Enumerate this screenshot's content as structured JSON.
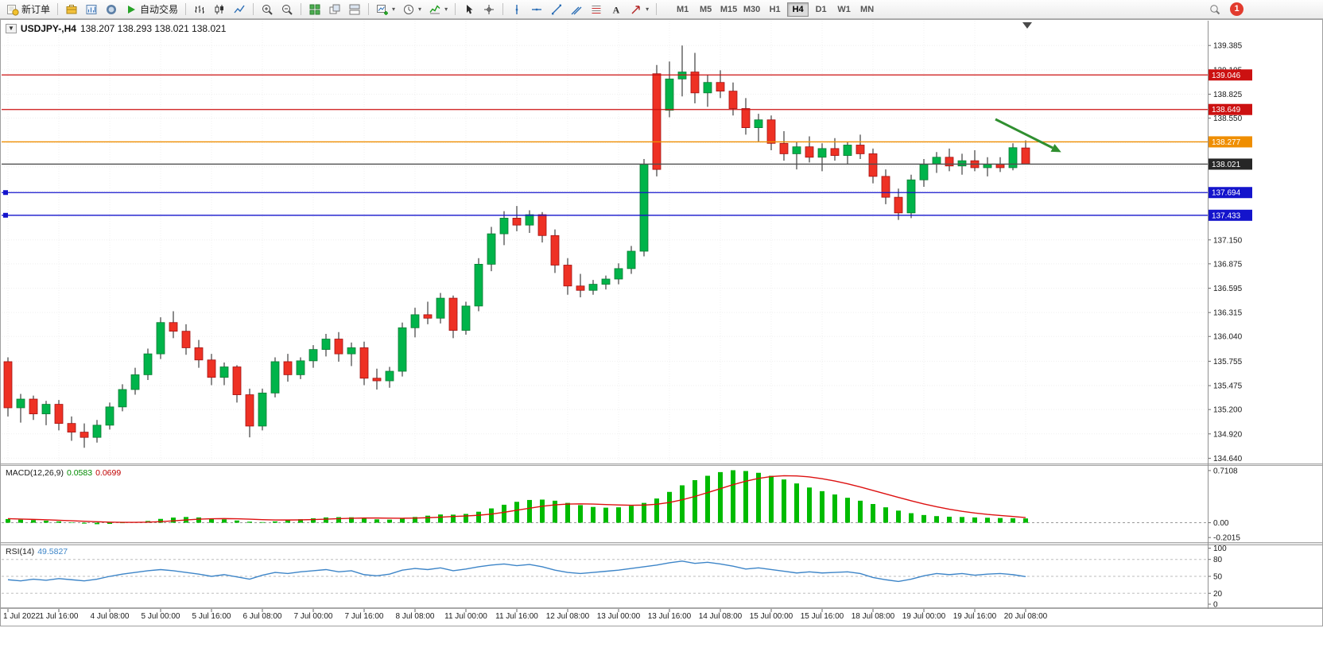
{
  "toolbar": {
    "new_order_label": "新订单",
    "auto_trading_label": "自动交易",
    "timeframes": [
      "M1",
      "M5",
      "M15",
      "M30",
      "H1",
      "H4",
      "D1",
      "W1",
      "MN"
    ],
    "active_timeframe": "H4",
    "notification_count": "1",
    "icons": [
      "new-order-icon",
      "market-watch-icon",
      "data-window-icon",
      "mql5-icon",
      "autotrade-play-icon",
      "bar-chart-icon",
      "candlestick-chart-icon",
      "line-chart-icon",
      "zoom-in-icon",
      "zoom-out-icon",
      "tile-windows-icon",
      "cascade-windows-icon",
      "arrange-windows-icon",
      "new-chart-icon",
      "periods-icon",
      "indicators-icon",
      "cursor-icon",
      "crosshair-icon",
      "vertical-line-icon",
      "horizontal-line-icon",
      "trendline-icon",
      "channel-icon",
      "fibonacci-icon",
      "text-icon",
      "arrows-icon",
      "search-icon"
    ]
  },
  "chart_title": {
    "symbol": "USDJPY-,H4",
    "ohlc": "138.207 138.293 138.021 138.021"
  },
  "chart_data": {
    "type": "candlestick",
    "symbol": "USDJPY-",
    "timeframe": "H4",
    "up_color": "#00b44a",
    "down_color": "#ee3124",
    "up_border": "#0b7a33",
    "down_border": "#a31111",
    "wick_color": "#1a1a1a",
    "price_axis_ticks": [
      "139.385",
      "139.105",
      "138.825",
      "138.550",
      "137.150",
      "136.875",
      "136.595",
      "136.315",
      "136.040",
      "135.755",
      "135.475",
      "135.200",
      "134.920",
      "134.640"
    ],
    "price_axis_hidden_grid": [
      138.27,
      137.99,
      137.71,
      137.43
    ],
    "time_labels": [
      "1 Jul 2022",
      "1 Jul 16:00",
      "4 Jul 08:00",
      "5 Jul 00:00",
      "5 Jul 16:00",
      "6 Jul 08:00",
      "7 Jul 00:00",
      "7 Jul 16:00",
      "8 Jul 08:00",
      "11 Jul 00:00",
      "11 Jul 16:00",
      "12 Jul 08:00",
      "13 Jul 00:00",
      "13 Jul 16:00",
      "14 Jul 08:00",
      "15 Jul 00:00",
      "15 Jul 16:00",
      "18 Jul 08:00",
      "19 Jul 00:00",
      "19 Jul 16:00",
      "20 Jul 08:00"
    ],
    "horizontal_lines": [
      {
        "name": "resistance-line-upper",
        "label": "139.046",
        "price": 139.046,
        "color": "#cc1111",
        "badge_color": "#cc1111"
      },
      {
        "name": "resistance-line-lower",
        "label": "138.649",
        "price": 138.649,
        "color": "#cc1111",
        "badge_color": "#cc1111"
      },
      {
        "name": "orange-level-line",
        "label": "138.277",
        "price": 138.277,
        "color": "#ef8e00",
        "badge_color": "#ef8e00"
      },
      {
        "name": "bid-price-line",
        "label": "138.021",
        "price": 138.021,
        "color": "#4d4d4d",
        "badge_color": "#262626"
      },
      {
        "name": "support-line-upper",
        "label": "137.694",
        "price": 137.694,
        "color": "#1414cc",
        "badge_color": "#1414cc",
        "handles": true
      },
      {
        "name": "support-line-lower",
        "label": "137.433",
        "price": 137.433,
        "color": "#1414cc",
        "badge_color": "#1414cc",
        "handles": true
      }
    ],
    "arrow_annotation": {
      "from": [
        1252,
        150
      ],
      "to": [
        1324,
        186
      ],
      "color": "#2f8f2f"
    },
    "candles": [
      [
        135.75,
        135.8,
        135.12,
        135.22
      ],
      [
        135.22,
        135.38,
        135.05,
        135.32
      ],
      [
        135.32,
        135.36,
        135.08,
        135.15
      ],
      [
        135.15,
        135.3,
        135.02,
        135.26
      ],
      [
        135.26,
        135.31,
        134.96,
        135.04
      ],
      [
        135.04,
        135.12,
        134.84,
        134.94
      ],
      [
        134.94,
        135.04,
        134.76,
        134.88
      ],
      [
        134.88,
        135.08,
        134.82,
        135.02
      ],
      [
        135.02,
        135.28,
        134.97,
        135.23
      ],
      [
        135.23,
        135.49,
        135.18,
        135.43
      ],
      [
        135.43,
        135.68,
        135.37,
        135.6
      ],
      [
        135.6,
        135.9,
        135.54,
        135.84
      ],
      [
        135.84,
        136.26,
        135.78,
        136.2
      ],
      [
        136.2,
        136.33,
        136.02,
        136.1
      ],
      [
        136.1,
        136.18,
        135.83,
        135.91
      ],
      [
        135.91,
        136.0,
        135.68,
        135.77
      ],
      [
        135.77,
        135.84,
        135.48,
        135.57
      ],
      [
        135.57,
        135.74,
        135.48,
        135.69
      ],
      [
        135.69,
        135.71,
        135.28,
        135.37
      ],
      [
        135.37,
        135.44,
        134.88,
        135.01
      ],
      [
        135.01,
        135.44,
        134.96,
        135.39
      ],
      [
        135.39,
        135.8,
        135.34,
        135.75
      ],
      [
        135.75,
        135.84,
        135.52,
        135.6
      ],
      [
        135.6,
        135.8,
        135.55,
        135.76
      ],
      [
        135.76,
        135.94,
        135.68,
        135.89
      ],
      [
        135.89,
        136.07,
        135.81,
        136.01
      ],
      [
        136.01,
        136.09,
        135.75,
        135.84
      ],
      [
        135.84,
        135.97,
        135.7,
        135.91
      ],
      [
        135.91,
        135.98,
        135.48,
        135.56
      ],
      [
        135.56,
        135.67,
        135.43,
        135.53
      ],
      [
        135.53,
        135.69,
        135.45,
        135.64
      ],
      [
        135.64,
        136.2,
        135.58,
        136.14
      ],
      [
        136.14,
        136.37,
        136.03,
        136.29
      ],
      [
        136.29,
        136.44,
        136.18,
        136.25
      ],
      [
        136.25,
        136.54,
        136.19,
        136.48
      ],
      [
        136.48,
        136.51,
        136.02,
        136.11
      ],
      [
        136.11,
        136.44,
        136.06,
        136.39
      ],
      [
        136.39,
        136.94,
        136.33,
        136.87
      ],
      [
        136.87,
        137.3,
        136.79,
        137.22
      ],
      [
        137.22,
        137.48,
        137.09,
        137.4
      ],
      [
        137.4,
        137.54,
        137.25,
        137.32
      ],
      [
        137.32,
        137.49,
        137.23,
        137.44
      ],
      [
        137.44,
        137.47,
        137.12,
        137.2
      ],
      [
        137.2,
        137.27,
        136.77,
        136.86
      ],
      [
        136.86,
        136.94,
        136.52,
        136.62
      ],
      [
        136.62,
        136.76,
        136.49,
        136.57
      ],
      [
        136.57,
        136.69,
        136.52,
        136.64
      ],
      [
        136.64,
        136.74,
        136.58,
        136.7
      ],
      [
        136.7,
        136.88,
        136.64,
        136.82
      ],
      [
        136.82,
        137.08,
        136.76,
        137.02
      ],
      [
        137.02,
        138.08,
        136.96,
        138.02
      ],
      [
        139.06,
        139.16,
        137.88,
        137.96
      ],
      [
        138.64,
        139.2,
        138.56,
        139.0
      ],
      [
        139.0,
        139.385,
        138.8,
        139.08
      ],
      [
        139.08,
        139.3,
        138.72,
        138.84
      ],
      [
        138.84,
        139.05,
        138.68,
        138.96
      ],
      [
        138.96,
        139.1,
        138.78,
        138.86
      ],
      [
        138.86,
        138.96,
        138.58,
        138.66
      ],
      [
        138.66,
        138.78,
        138.36,
        138.44
      ],
      [
        138.44,
        138.6,
        138.28,
        138.53
      ],
      [
        138.53,
        138.58,
        138.18,
        138.26
      ],
      [
        138.26,
        138.4,
        138.06,
        138.14
      ],
      [
        138.14,
        138.28,
        137.96,
        138.22
      ],
      [
        138.22,
        138.34,
        138.04,
        138.1
      ],
      [
        138.1,
        138.26,
        137.94,
        138.2
      ],
      [
        138.2,
        138.32,
        138.06,
        138.12
      ],
      [
        138.12,
        138.28,
        138.02,
        138.24
      ],
      [
        138.24,
        138.36,
        138.08,
        138.14
      ],
      [
        138.14,
        138.2,
        137.8,
        137.88
      ],
      [
        137.88,
        137.96,
        137.56,
        137.64
      ],
      [
        137.64,
        137.74,
        137.38,
        137.46
      ],
      [
        137.46,
        137.9,
        137.4,
        137.84
      ],
      [
        137.84,
        138.08,
        137.76,
        138.02
      ],
      [
        138.02,
        138.16,
        137.92,
        138.1
      ],
      [
        138.1,
        138.2,
        137.94,
        138.0
      ],
      [
        138.0,
        138.14,
        137.9,
        138.06
      ],
      [
        138.06,
        138.18,
        137.94,
        137.98
      ],
      [
        137.98,
        138.1,
        137.88,
        138.02
      ],
      [
        138.02,
        138.1,
        137.93,
        137.98
      ],
      [
        137.98,
        138.26,
        137.95,
        138.21
      ],
      [
        138.207,
        138.293,
        138.021,
        138.021
      ]
    ]
  },
  "macd": {
    "label": "MACD(12,26,9)",
    "value_main": "0.0583",
    "value_signal": "0.0699",
    "axis_ticks": [
      "0.7108",
      "0.00",
      "-0.2015"
    ],
    "histogram_color": "#00bb00",
    "signal_color": "#dd1111",
    "histogram": [
      0.05,
      0.042,
      0.036,
      0.028,
      0.018,
      0.006,
      -0.012,
      -0.02,
      -0.016,
      -0.006,
      0.008,
      0.024,
      0.052,
      0.07,
      0.078,
      0.072,
      0.06,
      0.046,
      0.03,
      0.014,
      0.008,
      0.018,
      0.034,
      0.048,
      0.06,
      0.072,
      0.076,
      0.074,
      0.06,
      0.046,
      0.042,
      0.056,
      0.078,
      0.096,
      0.112,
      0.11,
      0.12,
      0.15,
      0.195,
      0.245,
      0.285,
      0.31,
      0.315,
      0.3,
      0.27,
      0.24,
      0.215,
      0.205,
      0.21,
      0.23,
      0.27,
      0.33,
      0.42,
      0.51,
      0.58,
      0.64,
      0.69,
      0.715,
      0.705,
      0.68,
      0.64,
      0.59,
      0.535,
      0.48,
      0.43,
      0.385,
      0.34,
      0.3,
      0.255,
      0.21,
      0.165,
      0.13,
      0.105,
      0.09,
      0.082,
      0.078,
      0.072,
      0.068,
      0.064,
      0.061,
      0.0583
    ],
    "signal": [
      0.055,
      0.05,
      0.045,
      0.04,
      0.034,
      0.027,
      0.02,
      0.013,
      0.008,
      0.005,
      0.005,
      0.008,
      0.015,
      0.026,
      0.038,
      0.048,
      0.054,
      0.056,
      0.054,
      0.048,
      0.042,
      0.038,
      0.037,
      0.039,
      0.043,
      0.049,
      0.055,
      0.061,
      0.064,
      0.064,
      0.062,
      0.061,
      0.063,
      0.068,
      0.076,
      0.085,
      0.092,
      0.102,
      0.118,
      0.142,
      0.17,
      0.198,
      0.224,
      0.243,
      0.254,
      0.257,
      0.254,
      0.248,
      0.242,
      0.238,
      0.24,
      0.252,
      0.276,
      0.312,
      0.358,
      0.41,
      0.464,
      0.518,
      0.566,
      0.604,
      0.63,
      0.64,
      0.638,
      0.624,
      0.6,
      0.568,
      0.53,
      0.487,
      0.44,
      0.392,
      0.345,
      0.299,
      0.256,
      0.218,
      0.184,
      0.156,
      0.133,
      0.114,
      0.099,
      0.085,
      0.0699
    ]
  },
  "rsi": {
    "label": "RSI(14)",
    "value": "49.5827",
    "axis_ticks": [
      "100",
      "80",
      "50",
      "20",
      "0"
    ],
    "levels": [
      80,
      50,
      20
    ],
    "line_color": "#3d85c8",
    "values": [
      44,
      42,
      45,
      43,
      46,
      44,
      42,
      45,
      50,
      54,
      57,
      60,
      62,
      60,
      57,
      54,
      50,
      53,
      49,
      45,
      52,
      57,
      55,
      58,
      60,
      62,
      58,
      60,
      53,
      51,
      54,
      61,
      64,
      62,
      65,
      60,
      63,
      67,
      70,
      72,
      69,
      71,
      67,
      61,
      57,
      55,
      57,
      59,
      61,
      64,
      67,
      70,
      74,
      77,
      73,
      75,
      72,
      68,
      63,
      65,
      62,
      59,
      56,
      58,
      56,
      57,
      58,
      55,
      48,
      44,
      41,
      45,
      51,
      55,
      53,
      55,
      52,
      54,
      55,
      53,
      49.58
    ]
  }
}
